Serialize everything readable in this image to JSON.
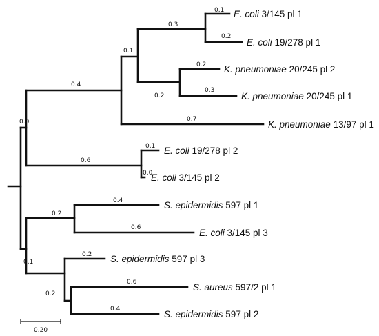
{
  "tree": {
    "taxa": [
      {
        "species": "E. coli",
        "rest": " 3/145 pl 1"
      },
      {
        "species": "E. coli",
        "rest": " 19/278 pl 1"
      },
      {
        "species": "K. pneumoniae",
        "rest": " 20/245 pl 2"
      },
      {
        "species": "K. pneumoniae",
        "rest": " 20/245 pl 1"
      },
      {
        "species": "K. pneumoniae",
        "rest": " 13/97 pl 1"
      },
      {
        "species": "E. coli",
        "rest": " 19/278 pl 2"
      },
      {
        "species": "E. coli",
        "rest": " 3/145 pl 2"
      },
      {
        "species": "S. epidermidis",
        "rest": " 597 pl 1"
      },
      {
        "species": "E. coli",
        "rest": " 3/145 pl 3"
      },
      {
        "species": "S. epidermidis",
        "rest": " 597 pl 3"
      },
      {
        "species": "S. aureus",
        "rest": " 597/2 pl 1"
      },
      {
        "species": "S. epidermidis",
        "rest": " 597 pl 2"
      }
    ],
    "branch_lengths": [
      "0.1",
      "0.2",
      "0.3",
      "0.2",
      "0.3",
      "0.2",
      "0.1",
      "0.7",
      "0.4",
      "0.1",
      "0.0",
      "0.6",
      "0.0",
      "0.4",
      "0.6",
      "0.2",
      "0.2",
      "0.6",
      "0.4",
      "0.2",
      "0.1"
    ],
    "scale_bar": "0.20"
  }
}
